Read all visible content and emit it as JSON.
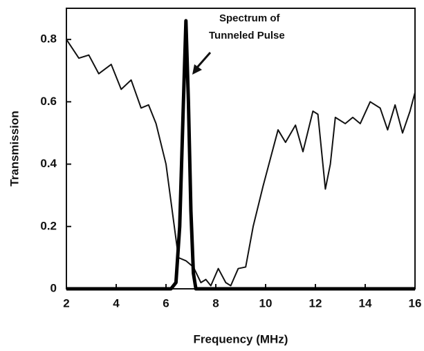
{
  "chart_data": {
    "type": "line",
    "xlabel": "Frequency (MHz)",
    "ylabel": "Transmission",
    "annotation": [
      "Spectrum of",
      "Tunneled Pulse"
    ],
    "xlim": [
      2,
      16
    ],
    "ylim": [
      0,
      0.9
    ],
    "xticks": [
      2,
      4,
      6,
      8,
      10,
      12,
      14,
      16
    ],
    "yticks": [
      0,
      0.2,
      0.4,
      0.6,
      0.8
    ],
    "series": [
      {
        "color": "#111111",
        "width": 2,
        "x": [
          2,
          2.5,
          2.9,
          3.3,
          3.8,
          4.2,
          4.6,
          5.0,
          5.3,
          5.6,
          6.0,
          6.3,
          6.5,
          6.8,
          7.1,
          7.4,
          7.6,
          7.8,
          8.1,
          8.4,
          8.6,
          8.9,
          9.2,
          9.5,
          9.9,
          10.2,
          10.5,
          10.8,
          11.2,
          11.5,
          11.9,
          12.1,
          12.4,
          12.6,
          12.8,
          13.2,
          13.5,
          13.8,
          14.2,
          14.6,
          14.9,
          15.2,
          15.5,
          15.8,
          16
        ],
        "values": [
          0.8,
          0.74,
          0.75,
          0.69,
          0.72,
          0.64,
          0.67,
          0.58,
          0.59,
          0.53,
          0.4,
          0.22,
          0.1,
          0.09,
          0.07,
          0.02,
          0.03,
          0.01,
          0.065,
          0.02,
          0.01,
          0.065,
          0.07,
          0.2,
          0.33,
          0.42,
          0.51,
          0.47,
          0.525,
          0.44,
          0.57,
          0.56,
          0.32,
          0.4,
          0.55,
          0.53,
          0.55,
          0.53,
          0.6,
          0.58,
          0.51,
          0.59,
          0.5,
          0.57,
          0.63
        ]
      },
      {
        "color": "#000000",
        "width": 5,
        "x": [
          2,
          6.2,
          6.4,
          6.55,
          6.7,
          6.8,
          6.9,
          7.0,
          7.1,
          7.2,
          16
        ],
        "values": [
          0,
          0,
          0.02,
          0.2,
          0.6,
          0.86,
          0.6,
          0.25,
          0.05,
          0,
          0
        ]
      }
    ]
  }
}
